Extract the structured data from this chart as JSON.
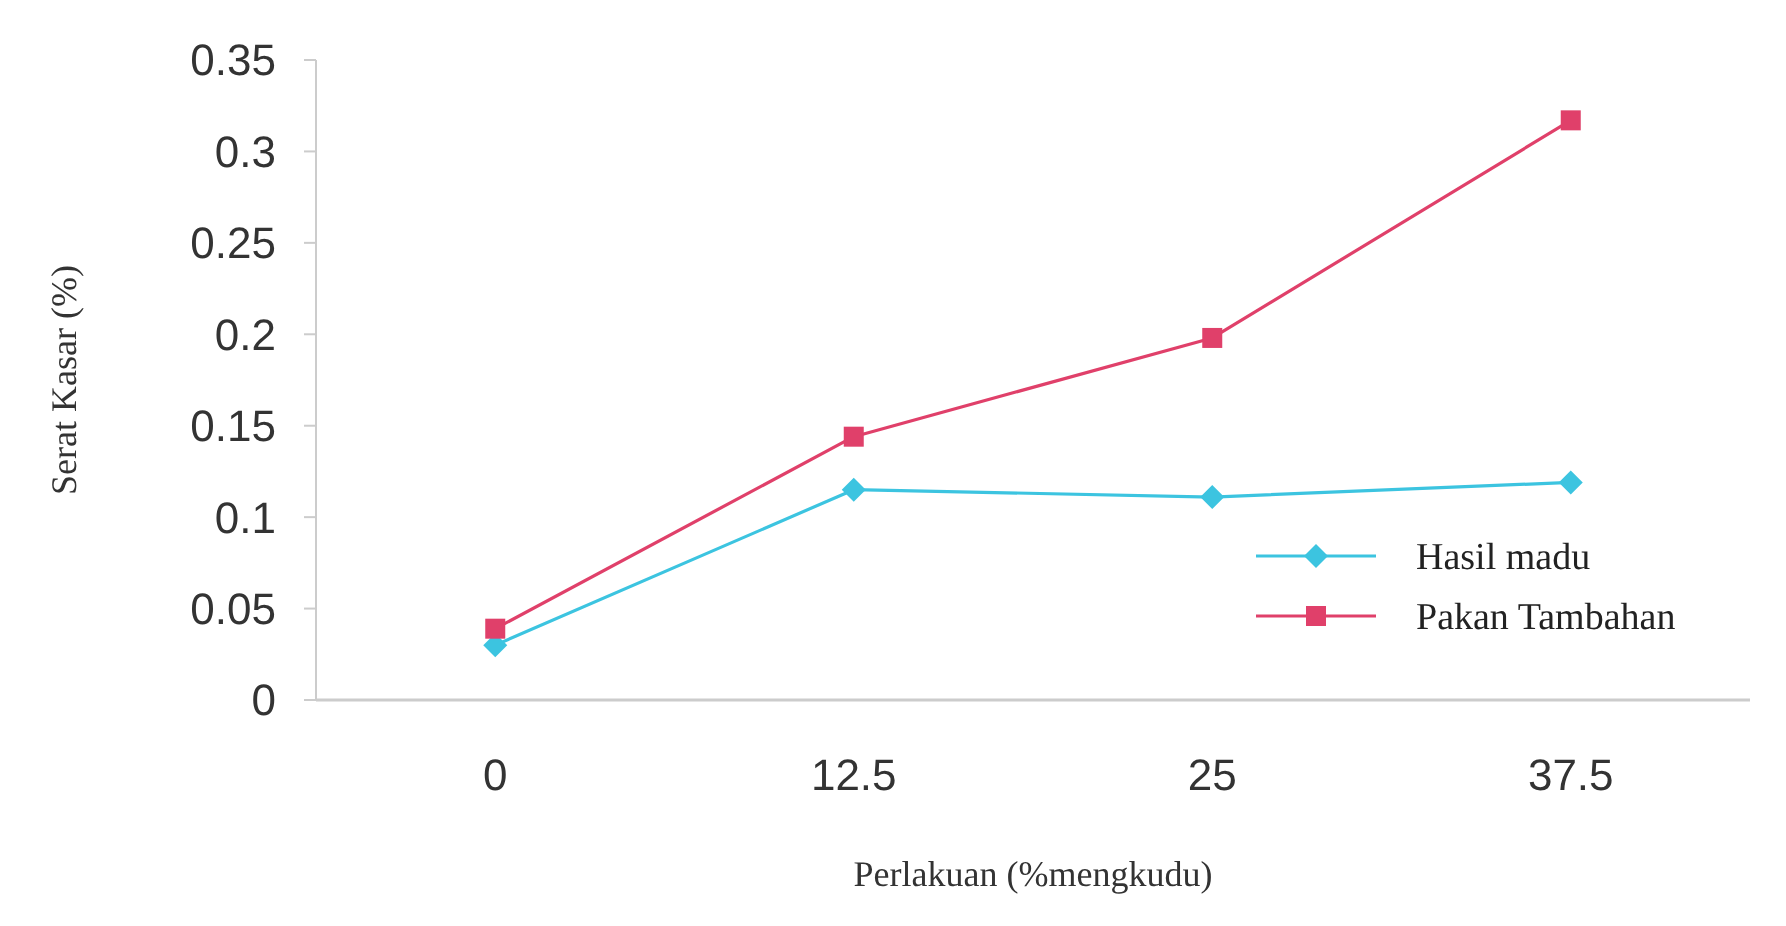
{
  "chart_data": {
    "type": "line",
    "xlabel": "Perlakuan (%mengkudu)",
    "ylabel": "Serat Kasar (%)",
    "categories": [
      "0",
      "12.5",
      "25",
      "37.5"
    ],
    "series": [
      {
        "name": "Hasil madu",
        "color": "#3cc4e0",
        "marker": "diamond",
        "values": [
          0.03,
          0.115,
          0.111,
          0.119
        ]
      },
      {
        "name": "Pakan Tambahan",
        "color": "#e0406a",
        "marker": "square",
        "values": [
          0.039,
          0.144,
          0.198,
          0.317
        ]
      }
    ],
    "ylim": [
      0,
      0.35
    ],
    "yticks": [
      0,
      0.05,
      0.1,
      0.15,
      0.2,
      0.25,
      0.3,
      0.35
    ],
    "grid": false,
    "legend": "right"
  }
}
